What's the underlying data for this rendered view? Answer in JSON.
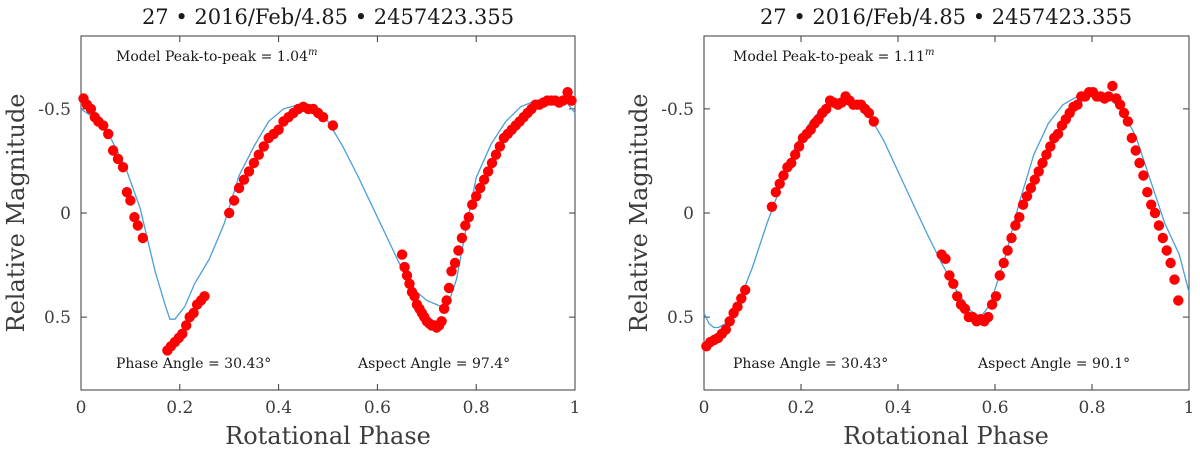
{
  "colors": {
    "model": "#4a9fd8",
    "points": "#ff0000"
  },
  "chart_data": [
    {
      "type": "scatter",
      "title": "27 • 2016/Feb/4.85 • 2457423.355",
      "xlabel": "Rotational Phase",
      "ylabel": "Relative Magnitude",
      "xlim": [
        0,
        1
      ],
      "ylim": [
        -0.85,
        0.85
      ],
      "y_inverted": true,
      "xticks": [
        0,
        0.2,
        0.4,
        0.6,
        0.8,
        1
      ],
      "xtick_labels": [
        "0",
        "0.2",
        "0.4",
        "0.6",
        "0.8",
        "1"
      ],
      "yticks": [
        -0.5,
        0,
        0.5
      ],
      "ytick_labels": [
        "-0.5",
        "0",
        "0.5"
      ],
      "annotations": {
        "peak": "Model Peak-to-peak = 1.04",
        "peak_sup": "m",
        "phase": "Phase Angle = 30.43°",
        "aspect": "Aspect Angle = 97.4°"
      },
      "series": [
        {
          "name": "model",
          "kind": "line",
          "x": [
            0,
            0.03,
            0.06,
            0.09,
            0.12,
            0.15,
            0.17,
            0.18,
            0.19,
            0.21,
            0.23,
            0.26,
            0.29,
            0.32,
            0.35,
            0.38,
            0.41,
            0.44,
            0.47,
            0.5,
            0.53,
            0.56,
            0.59,
            0.62,
            0.65,
            0.68,
            0.7,
            0.72,
            0.74,
            0.76,
            0.78,
            0.8,
            0.83,
            0.86,
            0.89,
            0.92,
            0.95,
            0.98,
            1.0
          ],
          "y": [
            -0.5,
            -0.45,
            -0.36,
            -0.22,
            -0.02,
            0.28,
            0.44,
            0.51,
            0.51,
            0.45,
            0.34,
            0.22,
            0.05,
            -0.18,
            -0.32,
            -0.44,
            -0.5,
            -0.52,
            -0.5,
            -0.44,
            -0.32,
            -0.18,
            -0.03,
            0.12,
            0.27,
            0.38,
            0.42,
            0.44,
            0.46,
            0.32,
            0.07,
            -0.17,
            -0.33,
            -0.44,
            -0.51,
            -0.54,
            -0.55,
            -0.54,
            -0.48
          ]
        },
        {
          "name": "observations",
          "kind": "points",
          "x": [
            0.005,
            0.012,
            0.02,
            0.028,
            0.035,
            0.045,
            0.055,
            0.065,
            0.075,
            0.085,
            0.093,
            0.1,
            0.108,
            0.115,
            0.125,
            0.175,
            0.182,
            0.19,
            0.198,
            0.205,
            0.213,
            0.22,
            0.228,
            0.235,
            0.243,
            0.25,
            0.3,
            0.31,
            0.32,
            0.33,
            0.34,
            0.35,
            0.36,
            0.37,
            0.38,
            0.39,
            0.4,
            0.41,
            0.42,
            0.43,
            0.44,
            0.45,
            0.46,
            0.47,
            0.48,
            0.49,
            0.51,
            0.65,
            0.655,
            0.66,
            0.665,
            0.67,
            0.675,
            0.68,
            0.685,
            0.69,
            0.695,
            0.7,
            0.705,
            0.71,
            0.715,
            0.72,
            0.725,
            0.73,
            0.735,
            0.74,
            0.745,
            0.75,
            0.757,
            0.764,
            0.771,
            0.778,
            0.785,
            0.792,
            0.8,
            0.808,
            0.816,
            0.824,
            0.832,
            0.84,
            0.848,
            0.856,
            0.864,
            0.872,
            0.88,
            0.888,
            0.896,
            0.904,
            0.912,
            0.92,
            0.928,
            0.936,
            0.944,
            0.952,
            0.96,
            0.968,
            0.976,
            0.985,
            0.993
          ],
          "y": [
            -0.55,
            -0.52,
            -0.5,
            -0.46,
            -0.44,
            -0.42,
            -0.38,
            -0.3,
            -0.26,
            -0.22,
            -0.1,
            -0.06,
            0.02,
            0.06,
            0.12,
            0.66,
            0.64,
            0.62,
            0.6,
            0.58,
            0.54,
            0.5,
            0.48,
            0.44,
            0.42,
            0.4,
            0.0,
            -0.06,
            -0.12,
            -0.16,
            -0.2,
            -0.24,
            -0.28,
            -0.32,
            -0.36,
            -0.38,
            -0.4,
            -0.44,
            -0.46,
            -0.48,
            -0.5,
            -0.51,
            -0.5,
            -0.5,
            -0.48,
            -0.46,
            -0.42,
            0.2,
            0.26,
            0.3,
            0.34,
            0.38,
            0.4,
            0.44,
            0.46,
            0.48,
            0.5,
            0.52,
            0.53,
            0.54,
            0.54,
            0.55,
            0.54,
            0.52,
            0.46,
            0.42,
            0.36,
            0.28,
            0.24,
            0.18,
            0.12,
            0.06,
            0.02,
            -0.04,
            -0.08,
            -0.12,
            -0.16,
            -0.2,
            -0.24,
            -0.28,
            -0.32,
            -0.36,
            -0.38,
            -0.4,
            -0.42,
            -0.44,
            -0.46,
            -0.48,
            -0.5,
            -0.52,
            -0.52,
            -0.53,
            -0.54,
            -0.54,
            -0.54,
            -0.53,
            -0.54,
            -0.58,
            -0.54
          ]
        }
      ]
    },
    {
      "type": "scatter",
      "title": "27 • 2016/Feb/4.85 • 2457423.355",
      "xlabel": "Rotational Phase",
      "ylabel": "Relative Magnitude",
      "xlim": [
        0,
        1
      ],
      "ylim": [
        -0.85,
        0.85
      ],
      "y_inverted": true,
      "xticks": [
        0,
        0.2,
        0.4,
        0.6,
        0.8,
        1
      ],
      "xtick_labels": [
        "0",
        "0.2",
        "0.4",
        "0.6",
        "0.8",
        "1"
      ],
      "yticks": [
        -0.5,
        0,
        0.5
      ],
      "ytick_labels": [
        "-0.5",
        "0",
        "0.5"
      ],
      "annotations": {
        "peak": "Model Peak-to-peak = 1.11",
        "peak_sup": "m",
        "phase": "Phase Angle = 30.43°",
        "aspect": "Aspect Angle = 90.1°"
      },
      "series": [
        {
          "name": "model",
          "kind": "line",
          "x": [
            0,
            0.01,
            0.02,
            0.03,
            0.045,
            0.06,
            0.08,
            0.1,
            0.13,
            0.16,
            0.19,
            0.22,
            0.25,
            0.28,
            0.31,
            0.34,
            0.37,
            0.4,
            0.43,
            0.46,
            0.49,
            0.52,
            0.55,
            0.57,
            0.59,
            0.62,
            0.65,
            0.68,
            0.71,
            0.74,
            0.77,
            0.8,
            0.83,
            0.86,
            0.89,
            0.92,
            0.95,
            0.98,
            1.0
          ],
          "y": [
            0.48,
            0.53,
            0.55,
            0.55,
            0.53,
            0.48,
            0.38,
            0.26,
            0.05,
            -0.14,
            -0.33,
            -0.44,
            -0.52,
            -0.55,
            -0.53,
            -0.47,
            -0.35,
            -0.2,
            -0.05,
            0.1,
            0.24,
            0.37,
            0.47,
            0.5,
            0.44,
            0.22,
            -0.05,
            -0.28,
            -0.43,
            -0.52,
            -0.56,
            -0.57,
            -0.56,
            -0.5,
            -0.37,
            -0.16,
            0.05,
            0.2,
            0.38
          ]
        },
        {
          "name": "observations",
          "kind": "points",
          "x": [
            0.005,
            0.013,
            0.021,
            0.029,
            0.037,
            0.045,
            0.053,
            0.061,
            0.069,
            0.077,
            0.085,
            0.14,
            0.148,
            0.156,
            0.164,
            0.172,
            0.18,
            0.188,
            0.196,
            0.204,
            0.212,
            0.22,
            0.228,
            0.236,
            0.244,
            0.252,
            0.26,
            0.268,
            0.276,
            0.284,
            0.292,
            0.3,
            0.308,
            0.316,
            0.324,
            0.332,
            0.34,
            0.35,
            0.49,
            0.498,
            0.506,
            0.514,
            0.522,
            0.53,
            0.538,
            0.546,
            0.554,
            0.562,
            0.57,
            0.578,
            0.586,
            0.594,
            0.602,
            0.61,
            0.618,
            0.626,
            0.634,
            0.642,
            0.65,
            0.658,
            0.666,
            0.674,
            0.682,
            0.69,
            0.698,
            0.706,
            0.714,
            0.722,
            0.73,
            0.738,
            0.746,
            0.754,
            0.762,
            0.77,
            0.778,
            0.786,
            0.794,
            0.802,
            0.81,
            0.818,
            0.826,
            0.834,
            0.842,
            0.85,
            0.858,
            0.866,
            0.874,
            0.882,
            0.89,
            0.898,
            0.906,
            0.914,
            0.922,
            0.93,
            0.938,
            0.946,
            0.954,
            0.962,
            0.97,
            0.978
          ],
          "y": [
            0.64,
            0.62,
            0.61,
            0.6,
            0.58,
            0.56,
            0.52,
            0.48,
            0.45,
            0.41,
            0.37,
            -0.03,
            -0.1,
            -0.14,
            -0.18,
            -0.22,
            -0.24,
            -0.28,
            -0.32,
            -0.36,
            -0.38,
            -0.4,
            -0.43,
            -0.45,
            -0.48,
            -0.5,
            -0.54,
            -0.53,
            -0.52,
            -0.53,
            -0.56,
            -0.54,
            -0.52,
            -0.52,
            -0.52,
            -0.5,
            -0.48,
            -0.44,
            0.2,
            0.22,
            0.3,
            0.34,
            0.4,
            0.44,
            0.46,
            0.5,
            0.5,
            0.52,
            0.51,
            0.52,
            0.5,
            0.44,
            0.4,
            0.3,
            0.24,
            0.18,
            0.12,
            0.06,
            0.02,
            -0.04,
            -0.08,
            -0.12,
            -0.16,
            -0.2,
            -0.24,
            -0.28,
            -0.32,
            -0.36,
            -0.38,
            -0.42,
            -0.45,
            -0.48,
            -0.51,
            -0.52,
            -0.56,
            -0.56,
            -0.58,
            -0.58,
            -0.56,
            -0.56,
            -0.55,
            -0.56,
            -0.61,
            -0.55,
            -0.52,
            -0.48,
            -0.44,
            -0.36,
            -0.3,
            -0.24,
            -0.18,
            -0.1,
            -0.04,
            0.0,
            0.06,
            0.12,
            0.18,
            0.24,
            0.32,
            0.42
          ]
        }
      ]
    }
  ]
}
